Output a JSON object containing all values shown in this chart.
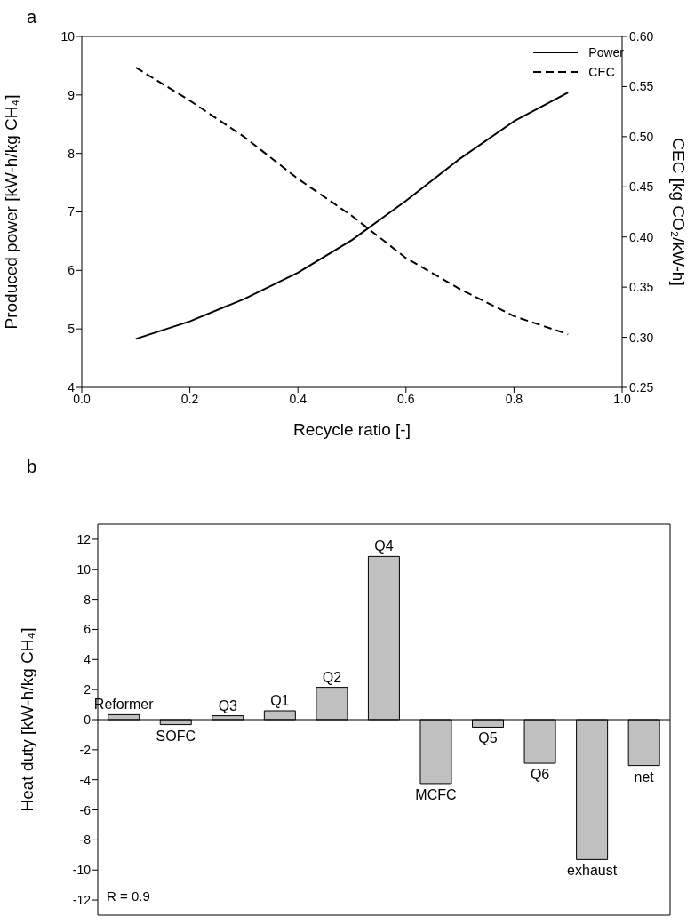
{
  "chart_data": [
    {
      "type": "line",
      "title": "a",
      "xlabel": "Recycle ratio [-]",
      "ylabel": "Produced power [kW-h/kg CH₄]",
      "y2label": "CEC [kg CO₂/kW-h]",
      "x": [
        0.1,
        0.2,
        0.3,
        0.4,
        0.5,
        0.6,
        0.7,
        0.8,
        0.9
      ],
      "series": [
        {
          "name": "Power",
          "color": "#000000",
          "line_style": "solid",
          "values": [
            4.83,
            5.13,
            5.51,
            5.96,
            6.52,
            7.19,
            7.91,
            8.55,
            9.04
          ]
        },
        {
          "name": "CEC",
          "color": "#000000",
          "line_style": "dashed",
          "axis": "y2",
          "values": [
            0.569,
            0.536,
            0.5,
            0.458,
            0.421,
            0.379,
            0.348,
            0.321,
            0.303
          ]
        }
      ],
      "xlim": [
        0,
        1
      ],
      "xticks": [
        {
          "value": 0,
          "label": "0.0"
        },
        0.2,
        0.4,
        0.6,
        0.8,
        {
          "value": 1,
          "label": "1.0"
        }
      ],
      "ylim": [
        4,
        10
      ],
      "yticks": [
        4,
        5,
        6,
        7,
        8,
        9,
        10
      ],
      "y2lim": [
        0.25,
        0.6
      ],
      "y2ticks": [
        0.25,
        {
          "value": 0.3,
          "label": "0.30"
        },
        0.35,
        {
          "value": 0.4,
          "label": "0.40"
        },
        0.45,
        {
          "value": 0.5,
          "label": "0.50"
        },
        0.55,
        {
          "value": 0.6,
          "label": "0.60"
        }
      ],
      "legend": "top right",
      "marker": "none"
    },
    {
      "type": "bar",
      "title": "b",
      "ylabel": "Heat duty [kW-h/kg CH₄]",
      "categories": [
        "Reformer",
        "SOFC",
        "Q3",
        "Q1",
        "Q2",
        "Q4",
        "MCFC",
        "Q5",
        "Q6",
        "exhaust",
        "net"
      ],
      "values": [
        0.33,
        -0.33,
        0.26,
        0.59,
        2.15,
        10.85,
        -4.25,
        -0.5,
        -2.9,
        -9.3,
        -3.05
      ],
      "color": "#c0c0c0",
      "ylim": [
        -13,
        13
      ],
      "yticks": [
        -12,
        -10,
        -8,
        -6,
        -4,
        -2,
        0,
        2,
        4,
        6,
        8,
        10,
        12
      ],
      "ref_lines": [
        {
          "axis": "y",
          "value": 0,
          "color": "#000000"
        }
      ],
      "annotations": [
        "R = 0.9"
      ],
      "tick_labels": "y"
    }
  ]
}
